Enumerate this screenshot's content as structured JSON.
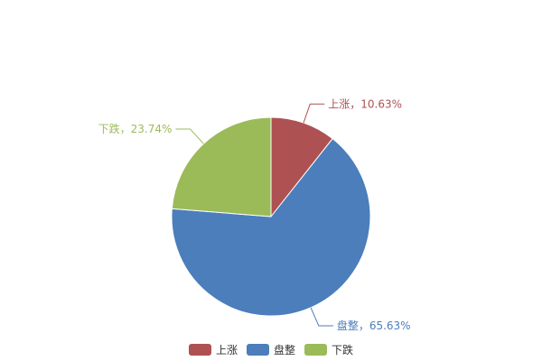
{
  "chart_data": {
    "type": "pie",
    "start": "top",
    "direction": "clockwise",
    "slices": [
      {
        "name": "上涨",
        "value": 10.63,
        "label": "上涨，10.63%",
        "color": "#AE5152"
      },
      {
        "name": "盘整",
        "value": 65.63,
        "label": "盘整，65.63%",
        "color": "#4B7EBB"
      },
      {
        "name": "下跌",
        "value": 23.74,
        "label": "下跌，23.74%",
        "color": "#9BBB59"
      }
    ],
    "legend": {
      "position": "bottom",
      "items": [
        "上涨",
        "盘整",
        "下跌"
      ]
    }
  }
}
